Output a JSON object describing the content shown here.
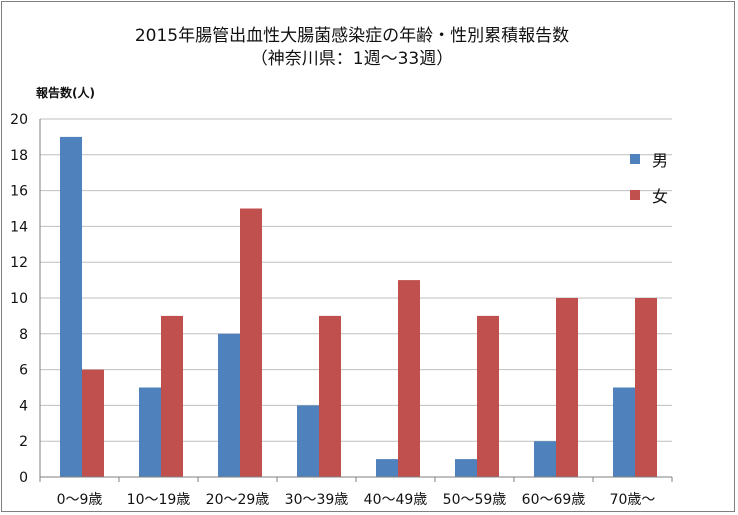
{
  "colors": {
    "male": "#4f81bd",
    "female": "#c0504d",
    "grid": "#bfbfbf",
    "axis": "#7f7f7f"
  },
  "chart_data": {
    "type": "bar",
    "title": "2015年腸管出血性大腸菌感染症の年齢・性別累積報告数",
    "subtitle": "（神奈川県：1週〜33週）",
    "xlabel": "",
    "ylabel": "報告数(人)",
    "ylim": [
      0,
      20
    ],
    "ytick_step": 2,
    "yticks": [
      "0",
      "2",
      "4",
      "6",
      "8",
      "10",
      "12",
      "14",
      "16",
      "18",
      "20"
    ],
    "categories": [
      "0〜9歳",
      "10〜19歳",
      "20〜29歳",
      "30〜39歳",
      "40〜49歳",
      "50〜59歳",
      "60〜69歳",
      "70歳〜"
    ],
    "series": [
      {
        "name": "男",
        "values": [
          19,
          5,
          8,
          4,
          1,
          1,
          2,
          5
        ]
      },
      {
        "name": "女",
        "values": [
          6,
          9,
          15,
          9,
          11,
          9,
          10,
          10
        ]
      }
    ],
    "grid": true,
    "legend_position": "right"
  }
}
